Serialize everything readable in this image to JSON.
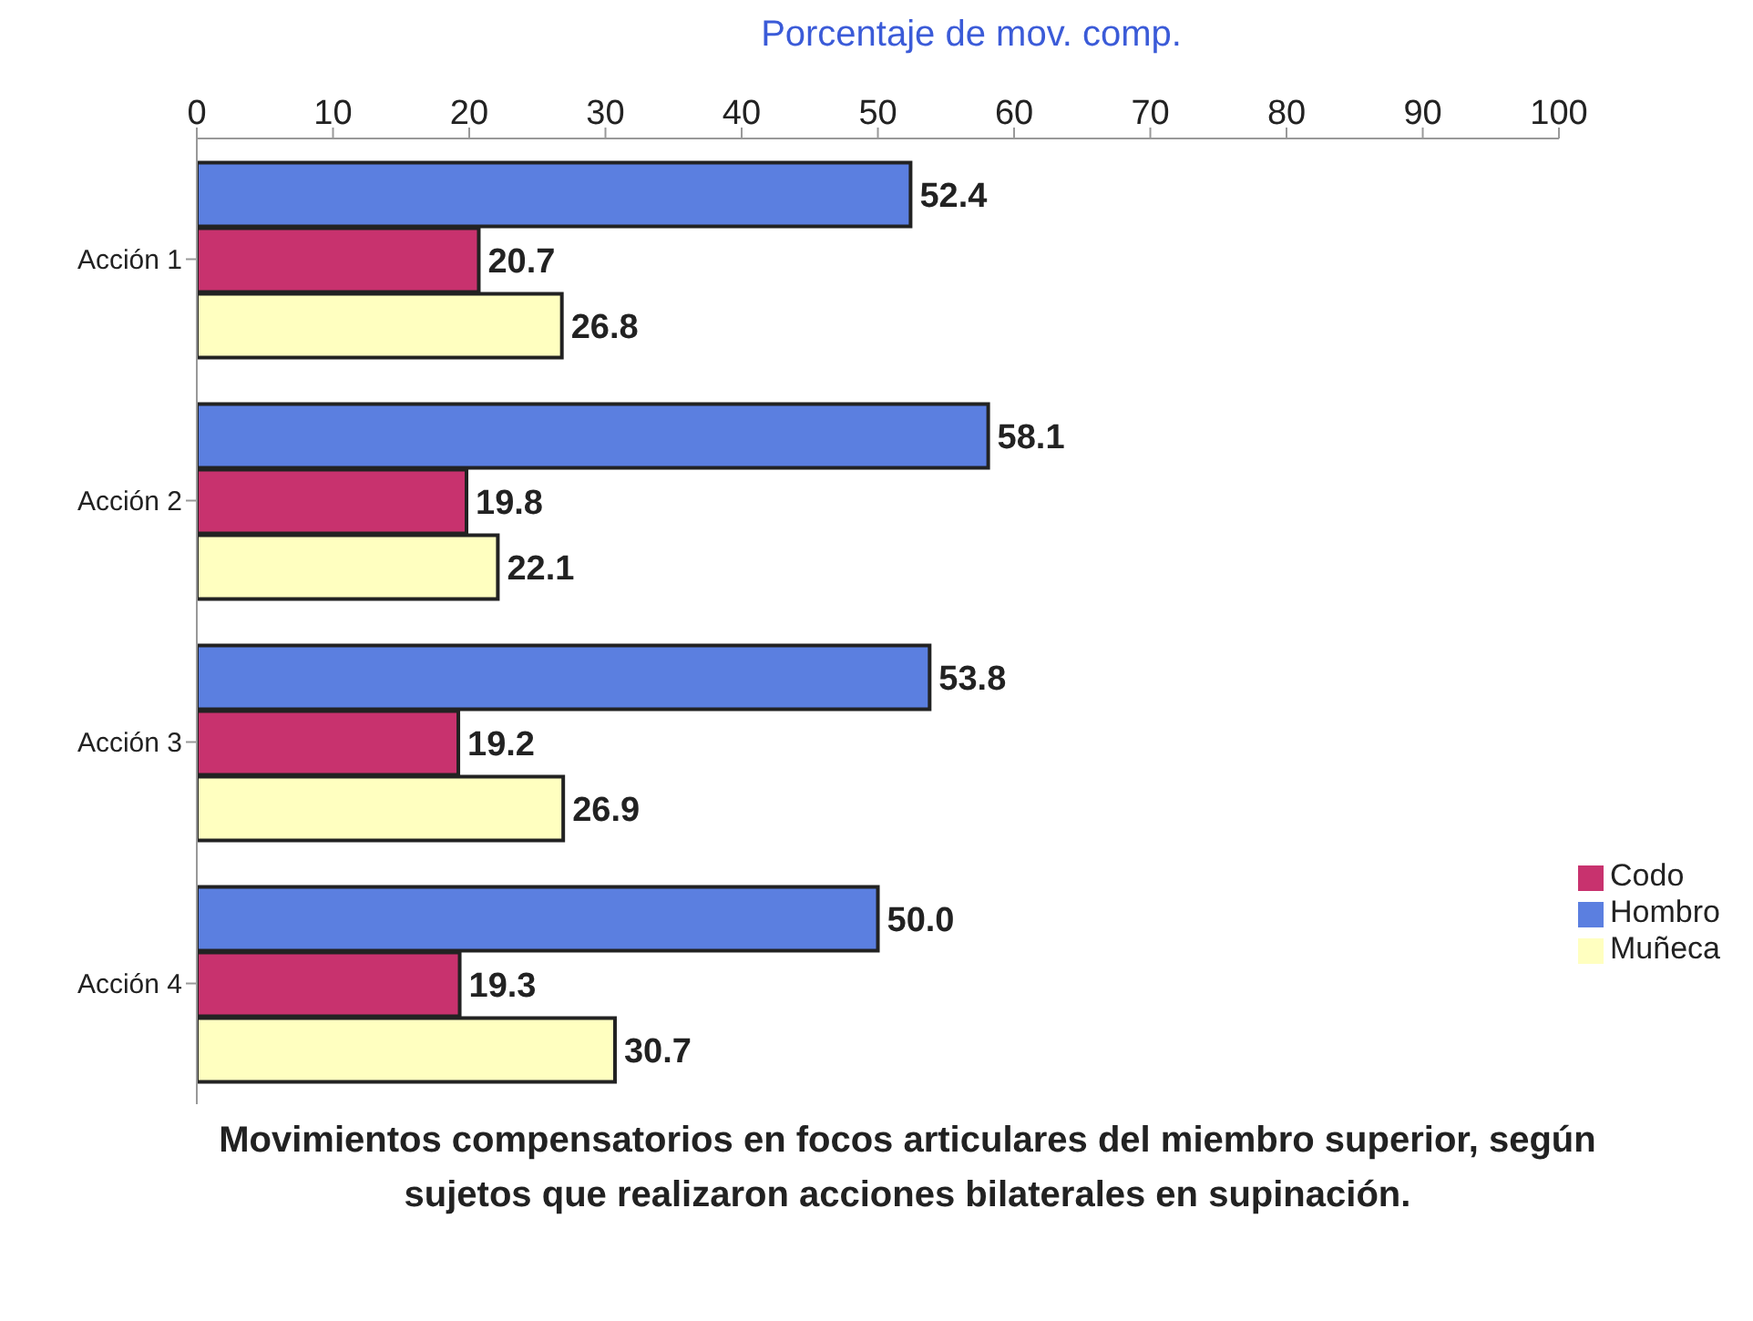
{
  "chart_data": {
    "type": "bar",
    "orientation": "horizontal",
    "xlabel": "Porcentaje de mov. comp.",
    "title": "Movimientos compensatorios en focos articulares del miembro superior, según sujetos que realizaron acciones bilaterales en supinación.",
    "categories": [
      "Acción 1",
      "Acción 2",
      "Acción 3",
      "Acción 4"
    ],
    "series": [
      {
        "name": "Hombro",
        "color": "#5b7fe0",
        "values": [
          52.4,
          58.1,
          53.8,
          50.0
        ],
        "value_labels": [
          "52.4",
          "58.1",
          "53.8",
          "50.0"
        ]
      },
      {
        "name": "Codo",
        "color": "#c8326e",
        "values": [
          20.7,
          19.8,
          19.2,
          19.3
        ],
        "value_labels": [
          "20.7",
          "19.8",
          "19.2",
          "19.3"
        ]
      },
      {
        "name": "Muñeca",
        "color": "#ffffc0",
        "values": [
          26.8,
          22.1,
          26.9,
          30.7
        ],
        "value_labels": [
          "26.8",
          "22.1",
          "26.9",
          "30.7"
        ]
      }
    ],
    "xlim": [
      0,
      100
    ],
    "xticks": [
      0,
      10,
      20,
      30,
      40,
      50,
      60,
      70,
      80,
      90,
      100
    ],
    "grid": false,
    "legend": "right"
  }
}
